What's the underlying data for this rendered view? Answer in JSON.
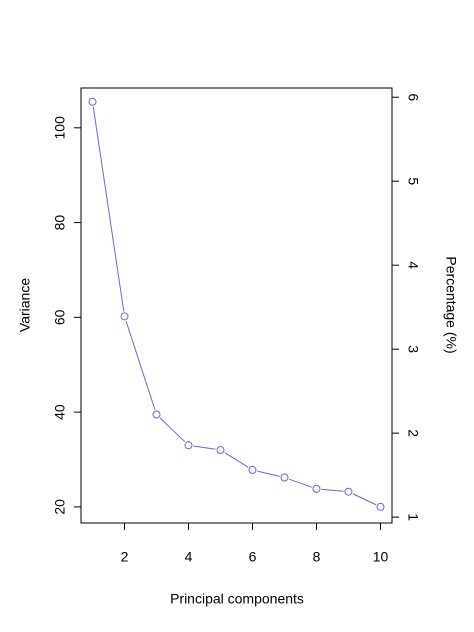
{
  "chart_data": {
    "type": "line",
    "x_label": "Principal components",
    "y_label": "Variance",
    "y2_label": "Percentage (%)",
    "x": [
      1,
      2,
      3,
      4,
      5,
      6,
      7,
      8,
      9,
      10
    ],
    "series": [
      {
        "color": "#6a6ad0",
        "values": [
          105.5,
          60.2,
          39.5,
          33,
          32,
          27.8,
          26.2,
          23.8,
          23.2,
          20
        ]
      }
    ],
    "xlim": [
      0.64,
      10.36
    ],
    "xticks": [
      2,
      4,
      6,
      8,
      10
    ],
    "ylim": [
      16.6,
      108.4
    ],
    "yticks": [
      20,
      40,
      60,
      80,
      100
    ],
    "y2lim": [
      0.93,
      6.11
    ],
    "y2ticks": [
      1,
      2,
      3,
      4,
      5,
      6
    ]
  }
}
